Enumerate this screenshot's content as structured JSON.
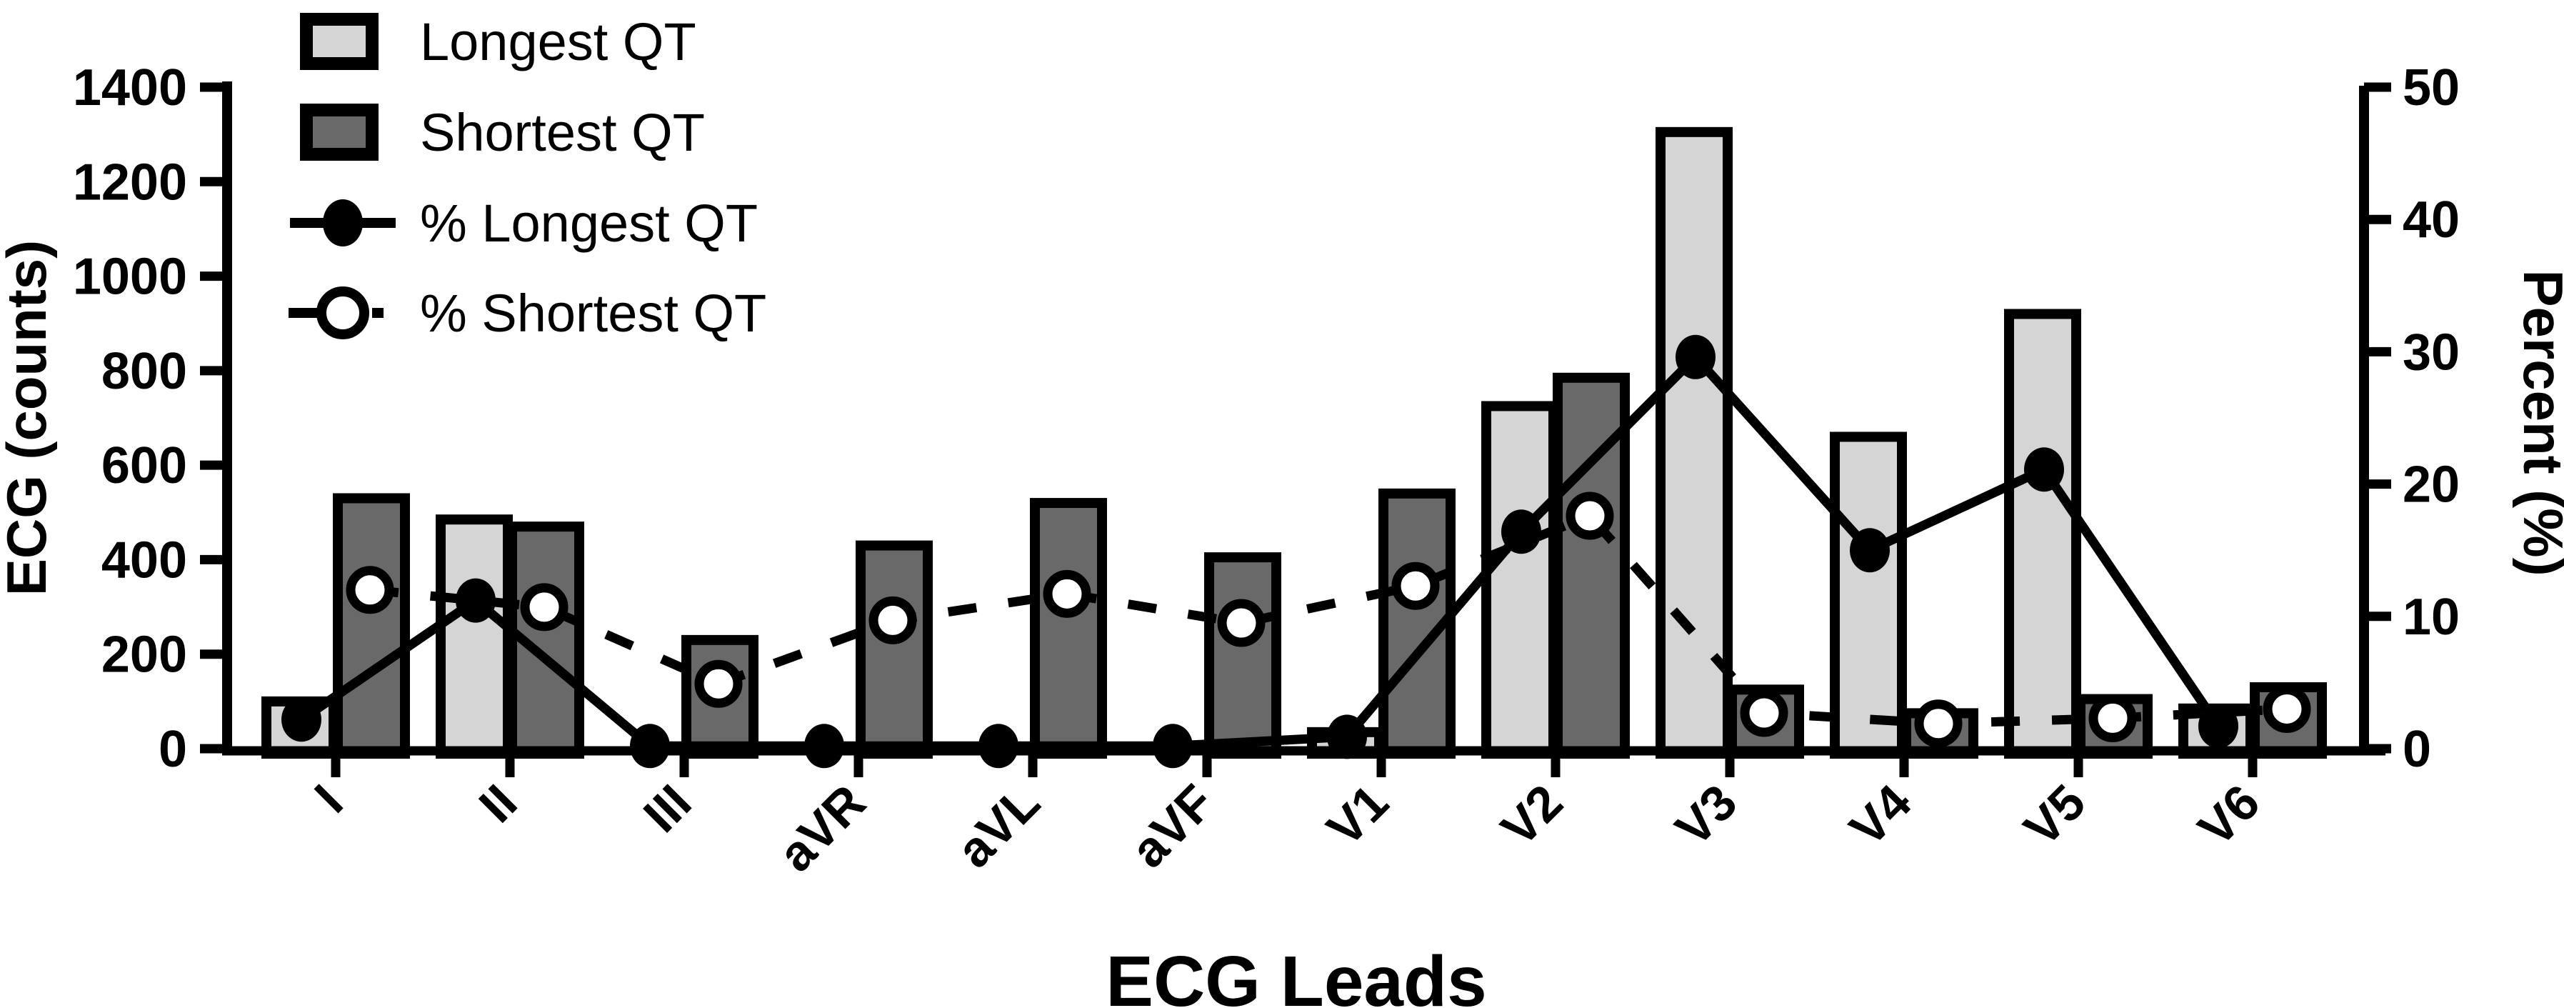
{
  "figure": {
    "xlabel": "ECG Leads",
    "left_axis_label": "ECG (counts)",
    "right_axis_label": "Percent (%)"
  },
  "colors": {
    "longest_bar_fill": "#d5d5d5",
    "shortest_bar_fill": "#696969",
    "line_and_border": "#000000",
    "background": "#ffffff"
  },
  "legend": {
    "items": [
      {
        "label": "Longest QT",
        "type": "bar",
        "color": "#d5d5d5"
      },
      {
        "label": "Shortest QT",
        "type": "bar",
        "color": "#696969"
      },
      {
        "label": "% Longest QT",
        "type": "line",
        "style": "solid",
        "marker": "filled-circle"
      },
      {
        "label": "% Shortest QT",
        "type": "line",
        "style": "dashed",
        "marker": "open-circle"
      }
    ]
  },
  "chart_data": {
    "type": "bar+line",
    "title": "",
    "xlabel": "ECG Leads",
    "grid": false,
    "legend_position": "top-left",
    "categories": [
      "I",
      "II",
      "III",
      "aVR",
      "aVL",
      "aVF",
      "V1",
      "V2",
      "V3",
      "V4",
      "V5",
      "V6"
    ],
    "left_axis": {
      "label": "ECG (counts)",
      "min": 0,
      "max": 1400,
      "tick_step": 200,
      "ticks": [
        0,
        200,
        400,
        600,
        800,
        1000,
        1200,
        1400
      ]
    },
    "right_axis": {
      "label": "Percent (%)",
      "min": 0,
      "max": 50,
      "tick_step": 10,
      "ticks": [
        0,
        10,
        20,
        30,
        40,
        50
      ]
    },
    "series": [
      {
        "name": "Longest QT",
        "kind": "bar",
        "axis": "left",
        "color": "#d5d5d5",
        "values": [
          100,
          485,
          0,
          0,
          0,
          0,
          35,
          725,
          1305,
          660,
          920,
          85
        ]
      },
      {
        "name": "Shortest QT",
        "kind": "bar",
        "axis": "left",
        "color": "#696969",
        "values": [
          530,
          470,
          230,
          430,
          520,
          405,
          540,
          785,
          125,
          75,
          105,
          130
        ]
      },
      {
        "name": "% Longest QT",
        "kind": "line",
        "axis": "right",
        "style": "solid",
        "marker": "filled-circle",
        "values": [
          2.2,
          11.2,
          0.2,
          0.2,
          0.2,
          0.2,
          0.9,
          16.4,
          29.6,
          15.0,
          21.1,
          1.7
        ]
      },
      {
        "name": "% Shortest QT",
        "kind": "line",
        "axis": "right",
        "style": "dashed",
        "marker": "open-circle",
        "values": [
          12.0,
          10.7,
          4.9,
          9.7,
          11.7,
          9.5,
          12.3,
          17.6,
          2.7,
          1.9,
          2.3,
          3.0
        ]
      }
    ]
  }
}
